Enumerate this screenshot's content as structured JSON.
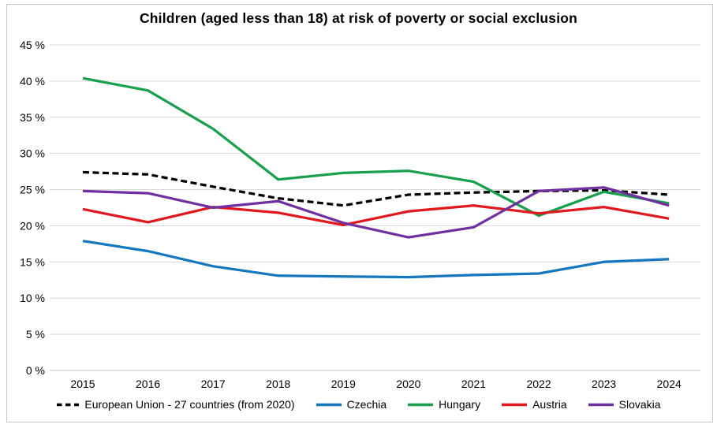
{
  "chart_data": {
    "type": "line",
    "title": "Children (aged less than 18) at risk of poverty or social exclusion",
    "categories": [
      "2015",
      "2016",
      "2017",
      "2018",
      "2019",
      "2020",
      "2021",
      "2022",
      "2023",
      "2024"
    ],
    "xlabel": "",
    "ylabel": "",
    "y_axis": {
      "min": 0,
      "max": 45,
      "tick_values": [
        0,
        5,
        10,
        15,
        20,
        25,
        30,
        35,
        40,
        45
      ],
      "tick_labels": [
        "0 %",
        "5 %",
        "10 %",
        "15 %",
        "20 %",
        "25 %",
        "30 %",
        "35 %",
        "40 %",
        "45 %"
      ],
      "grid": true
    },
    "legend_position": "bottom",
    "series": [
      {
        "name": "European Union - 27 countries (from 2020)",
        "color": "#000000",
        "style": "dashed",
        "values": [
          27.4,
          27.1,
          25.4,
          23.8,
          22.8,
          24.3,
          24.6,
          24.8,
          24.9,
          24.3
        ]
      },
      {
        "name": "Czechia",
        "color": "#1577bd",
        "style": "solid",
        "values": [
          17.9,
          16.5,
          14.4,
          13.1,
          13.0,
          12.9,
          13.2,
          13.4,
          15.0,
          15.4
        ]
      },
      {
        "name": "Hungary",
        "color": "#18a04c",
        "style": "solid",
        "values": [
          40.4,
          38.7,
          33.4,
          26.4,
          27.3,
          27.6,
          26.1,
          21.4,
          24.7,
          23.1
        ]
      },
      {
        "name": "Austria",
        "color": "#e0191e",
        "style": "solid",
        "values": [
          22.3,
          20.5,
          22.6,
          21.8,
          20.1,
          22.0,
          22.8,
          21.7,
          22.6,
          21.0
        ]
      },
      {
        "name": "Slovakia",
        "color": "#7030a0",
        "style": "solid",
        "values": [
          24.8,
          24.5,
          22.5,
          23.4,
          20.4,
          18.4,
          19.8,
          24.8,
          25.3,
          22.8
        ]
      }
    ],
    "grid_color": "#d9d9d9",
    "baseline_color": "#c9c9c9"
  }
}
